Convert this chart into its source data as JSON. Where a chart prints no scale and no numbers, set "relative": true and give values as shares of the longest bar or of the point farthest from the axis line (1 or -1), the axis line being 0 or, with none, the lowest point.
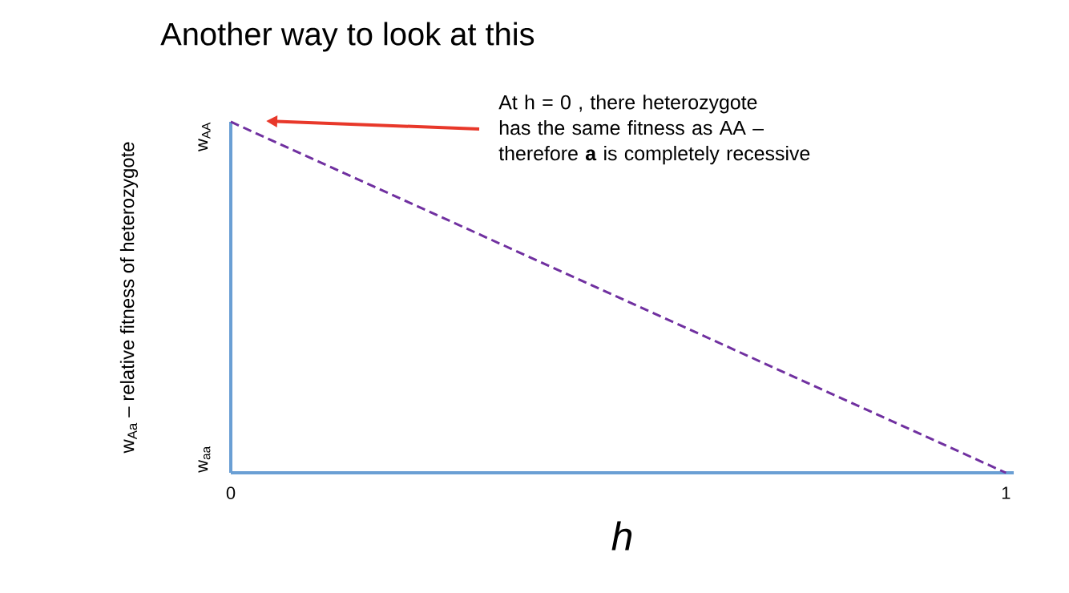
{
  "chart_data": {
    "type": "line",
    "title": "Another way to look at this",
    "xlabel": "h",
    "ylabel": "w$_{Aa}$ – relative fitness of heterozygote",
    "relative": true,
    "x": [
      0,
      1
    ],
    "series": [
      {
        "color": "#7030a0",
        "line_style": "dashed",
        "values": [
          1,
          0
        ]
      }
    ],
    "xlim": [
      0,
      1.01
    ],
    "xticks": [
      0,
      1
    ],
    "annotations": [
      "At h = 0 , there heterozygote has the same fitness as AA – therefore **a** is completely recessive",
      "w$_{AA}$",
      "w$_{aa}$"
    ]
  }
}
